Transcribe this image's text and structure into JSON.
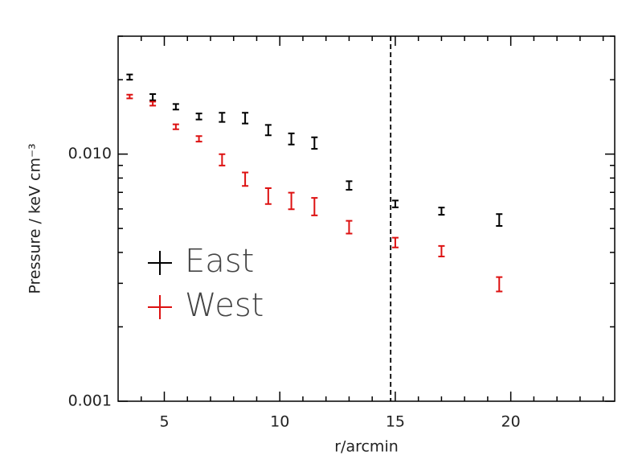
{
  "chart_data": {
    "type": "errorbar",
    "xlabel": "r/arcmin",
    "ylabel": "Pressure / keV cm⁻³",
    "xlim": [
      3,
      24.5
    ],
    "ylim": [
      0.001,
      0.03
    ],
    "log_y": true,
    "xticks": [
      5,
      10,
      15,
      20
    ],
    "xminorticks": [
      4,
      6,
      7,
      8,
      9,
      11,
      12,
      13,
      14,
      16,
      17,
      18,
      19,
      21,
      22,
      23,
      24
    ],
    "yticks": [
      {
        "value": 0.001,
        "label": "0.001"
      },
      {
        "value": 0.01,
        "label": "0.010"
      }
    ],
    "yminorticks": [
      0.002,
      0.003,
      0.004,
      0.005,
      0.006,
      0.007,
      0.008,
      0.009,
      0.02,
      0.03
    ],
    "vline": 14.8,
    "legend": "center left",
    "series": [
      {
        "name": "East",
        "color": "#000000",
        "x": [
          3.5,
          4.5,
          5.5,
          6.5,
          7.5,
          8.5,
          9.5,
          10.5,
          11.5,
          13,
          15,
          17,
          19.5
        ],
        "values": [
          0.0205,
          0.017,
          0.01555,
          0.0142,
          0.0141,
          0.014,
          0.01252,
          0.01153,
          0.0111,
          0.00747,
          0.00629,
          0.00588,
          0.00542
        ],
        "errors": [
          0.0005,
          0.0005,
          0.0004,
          0.0004,
          0.0006,
          0.0007,
          0.0006,
          0.0006,
          0.0006,
          0.0003,
          0.0002,
          0.0002,
          0.0003
        ]
      },
      {
        "name": "West",
        "color": "#dd1111",
        "x": [
          3.5,
          4.5,
          5.5,
          6.5,
          7.5,
          8.5,
          9.5,
          10.5,
          11.5,
          13,
          15,
          17,
          19.5
        ],
        "values": [
          0.0171,
          0.016,
          0.0129,
          0.01153,
          0.00949,
          0.00793,
          0.00678,
          0.00648,
          0.00615,
          0.00507,
          0.00439,
          0.00405,
          0.00298
        ],
        "errors": [
          0.0003,
          0.0003,
          0.0003,
          0.0003,
          0.0005,
          0.0005,
          0.0005,
          0.0005,
          0.0005,
          0.0003,
          0.0002,
          0.0002,
          0.0002
        ]
      }
    ]
  }
}
